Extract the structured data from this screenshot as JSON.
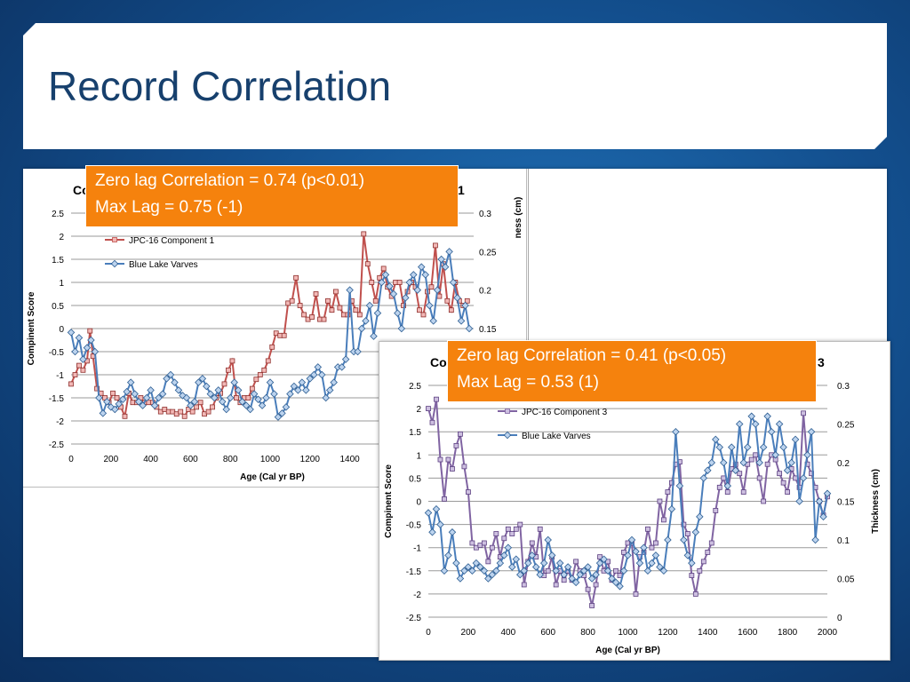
{
  "slide": {
    "title": "Record Correlation",
    "accent_color": "#f5820d",
    "background_color": "#134f8e"
  },
  "callouts": [
    {
      "line1": "Zero lag Correlation = 0.74 (p<0.01)",
      "line2": "Max Lag = 0.75 (-1)"
    },
    {
      "line1": "Zero lag Correlation = 0.41 (p<0.05)",
      "line2": "Max Lag = 0.53 (1)"
    }
  ],
  "chart_data": [
    {
      "type": "line",
      "title_visible_fragment_left": "Co",
      "title_visible_fragment_right": "1",
      "xlabel": "Age (Cal yr BP)",
      "ylabel": "Compinent Score",
      "ylabel_right_fragment": "ness (cm)",
      "xlim": [
        0,
        2000
      ],
      "ylim": [
        -2.5,
        2.5
      ],
      "ylim_right": [
        0,
        0.3
      ],
      "x_ticks": [
        "0",
        "200",
        "400",
        "600",
        "800",
        "1000",
        "1200",
        "1400"
      ],
      "y_ticks": [
        "2.5",
        "2",
        "1.5",
        "1",
        "0.5",
        "0",
        "-0.5",
        "-1",
        "-1.5",
        "-2",
        "-2.5"
      ],
      "y_right_ticks": [
        "0.3",
        "0.25",
        "0.2",
        "0.15"
      ],
      "grid": true,
      "legend_position": "top-left",
      "series": [
        {
          "name": "JPC-16 Component 1",
          "color": "#c0504d",
          "axis": "left",
          "x": [
            0,
            20,
            40,
            60,
            80,
            95,
            110,
            130,
            150,
            170,
            190,
            210,
            230,
            250,
            270,
            290,
            310,
            330,
            350,
            370,
            390,
            410,
            430,
            450,
            470,
            490,
            510,
            530,
            550,
            570,
            590,
            610,
            630,
            650,
            670,
            690,
            710,
            730,
            750,
            770,
            790,
            810,
            830,
            850,
            870,
            890,
            910,
            930,
            950,
            970,
            990,
            1010,
            1030,
            1050,
            1070,
            1090,
            1110,
            1130,
            1150,
            1170,
            1190,
            1210,
            1230,
            1250,
            1270,
            1290,
            1310,
            1330,
            1350,
            1370,
            1390,
            1410,
            1430,
            1450,
            1470,
            1490,
            1510,
            1530,
            1550,
            1570,
            1590,
            1610,
            1630,
            1650,
            1670,
            1690,
            1710,
            1730,
            1750,
            1770,
            1790,
            1810,
            1830,
            1850,
            1870,
            1890,
            1910,
            1930,
            1950,
            1970,
            1990
          ],
          "y": [
            -1.2,
            -1.0,
            -0.8,
            -0.9,
            -0.7,
            -0.05,
            -0.6,
            -1.3,
            -1.4,
            -1.5,
            -1.6,
            -1.4,
            -1.5,
            -1.7,
            -1.9,
            -1.4,
            -1.6,
            -1.6,
            -1.5,
            -1.6,
            -1.6,
            -1.6,
            -1.7,
            -1.8,
            -1.75,
            -1.8,
            -1.8,
            -1.85,
            -1.8,
            -1.9,
            -1.75,
            -1.8,
            -1.7,
            -1.6,
            -1.85,
            -1.8,
            -1.7,
            -1.5,
            -1.4,
            -1.2,
            -0.9,
            -0.7,
            -1.5,
            -1.6,
            -1.5,
            -1.5,
            -1.3,
            -1.1,
            -1.0,
            -0.9,
            -0.7,
            -0.4,
            -0.1,
            -0.15,
            -0.15,
            0.55,
            0.6,
            1.1,
            0.5,
            0.3,
            0.2,
            0.25,
            0.75,
            0.2,
            0.2,
            0.6,
            0.4,
            0.8,
            0.45,
            0.3,
            0.3,
            0.6,
            0.4,
            0.3,
            2.05,
            1.4,
            1.0,
            0.6,
            1.1,
            1.3,
            0.9,
            0.7,
            1.0,
            1.0,
            0.5,
            0.8,
            1.0,
            0.9,
            0.4,
            0.3,
            0.8,
            0.9,
            1.8,
            0.7,
            1.4,
            0.6,
            0.4,
            1.0,
            0.6,
            0.5,
            0.6
          ]
        },
        {
          "name": "Blue Lake Varves",
          "color": "#4a7ebb",
          "axis": "right",
          "x": [
            0,
            20,
            40,
            60,
            80,
            100,
            120,
            140,
            160,
            180,
            200,
            220,
            240,
            260,
            280,
            300,
            320,
            340,
            360,
            380,
            400,
            420,
            440,
            460,
            480,
            500,
            520,
            540,
            560,
            580,
            600,
            620,
            640,
            660,
            680,
            700,
            720,
            740,
            760,
            780,
            800,
            820,
            840,
            860,
            880,
            900,
            920,
            940,
            960,
            980,
            1000,
            1020,
            1040,
            1060,
            1080,
            1100,
            1120,
            1140,
            1160,
            1180,
            1200,
            1220,
            1240,
            1260,
            1280,
            1300,
            1320,
            1340,
            1360,
            1380,
            1400,
            1420,
            1440,
            1460,
            1480,
            1500,
            1520,
            1540,
            1560,
            1580,
            1600,
            1620,
            1640,
            1660,
            1680,
            1700,
            1720,
            1740,
            1760,
            1780,
            1800,
            1820,
            1840,
            1860,
            1880,
            1900,
            1920,
            1940,
            1960,
            1980,
            2000
          ],
          "y": [
            0.145,
            0.12,
            0.138,
            0.11,
            0.125,
            0.135,
            0.12,
            0.06,
            0.04,
            0.055,
            0.048,
            0.045,
            0.052,
            0.058,
            0.068,
            0.08,
            0.065,
            0.055,
            0.05,
            0.06,
            0.07,
            0.05,
            0.06,
            0.065,
            0.085,
            0.09,
            0.08,
            0.07,
            0.063,
            0.06,
            0.05,
            0.055,
            0.08,
            0.085,
            0.075,
            0.065,
            0.06,
            0.07,
            0.055,
            0.045,
            0.06,
            0.08,
            0.07,
            0.055,
            0.05,
            0.045,
            0.065,
            0.058,
            0.05,
            0.06,
            0.08,
            0.065,
            0.035,
            0.04,
            0.048,
            0.065,
            0.075,
            0.07,
            0.08,
            0.07,
            0.085,
            0.09,
            0.1,
            0.09,
            0.06,
            0.07,
            0.08,
            0.1,
            0.1,
            0.11,
            0.2,
            0.12,
            0.12,
            0.15,
            0.16,
            0.18,
            0.14,
            0.17,
            0.21,
            0.22,
            0.205,
            0.195,
            0.17,
            0.15,
            0.19,
            0.21,
            0.22,
            0.2,
            0.23,
            0.22,
            0.18,
            0.16,
            0.2,
            0.24,
            0.23,
            0.25,
            0.21,
            0.19,
            0.16,
            0.18,
            0.15
          ]
        }
      ]
    },
    {
      "type": "line",
      "title_visible_fragment_left": "Co",
      "title_visible_fragment_right": "3",
      "xlabel": "Age (Cal yr BP)",
      "ylabel": "Compinent Score",
      "ylabel_right": "Thickness (cm)",
      "xlim": [
        0,
        2000
      ],
      "ylim": [
        -2.5,
        2.5
      ],
      "ylim_right": [
        0,
        0.3
      ],
      "x_ticks": [
        "0",
        "200",
        "400",
        "600",
        "800",
        "1000",
        "1200",
        "1400",
        "1600",
        "1800",
        "2000"
      ],
      "y_ticks": [
        "2.5",
        "2",
        "1.5",
        "1",
        "0.5",
        "0",
        "-0.5",
        "-1",
        "-1.5",
        "-2",
        "-2.5"
      ],
      "y_right_ticks": [
        "0.3",
        "0.25",
        "0.2",
        "0.15",
        "0.1",
        "0.05",
        "0"
      ],
      "grid": true,
      "legend_position": "top-left",
      "series": [
        {
          "name": "JPC-16 Component 3",
          "color": "#8064a2",
          "axis": "left",
          "x": [
            0,
            20,
            40,
            60,
            80,
            100,
            120,
            140,
            160,
            180,
            200,
            220,
            240,
            260,
            280,
            300,
            320,
            340,
            360,
            380,
            400,
            420,
            440,
            460,
            480,
            500,
            520,
            540,
            560,
            580,
            600,
            620,
            640,
            660,
            680,
            700,
            720,
            740,
            760,
            780,
            800,
            820,
            840,
            860,
            880,
            900,
            920,
            940,
            960,
            980,
            1000,
            1020,
            1040,
            1060,
            1080,
            1100,
            1120,
            1140,
            1160,
            1180,
            1200,
            1220,
            1240,
            1260,
            1280,
            1300,
            1320,
            1340,
            1360,
            1380,
            1400,
            1420,
            1440,
            1460,
            1480,
            1500,
            1520,
            1540,
            1560,
            1580,
            1600,
            1620,
            1640,
            1660,
            1680,
            1700,
            1720,
            1740,
            1760,
            1780,
            1800,
            1820,
            1840,
            1860,
            1880,
            1900,
            1920,
            1940,
            1960,
            1980,
            2000
          ],
          "y": [
            2.0,
            1.7,
            2.2,
            0.9,
            0.05,
            0.9,
            0.7,
            1.2,
            1.45,
            0.75,
            0.2,
            -0.9,
            -1.0,
            -0.95,
            -0.9,
            -1.3,
            -1.0,
            -0.7,
            -1.2,
            -0.8,
            -0.6,
            -0.7,
            -0.6,
            -0.5,
            -1.8,
            -1.3,
            -0.9,
            -1.2,
            -0.6,
            -1.6,
            -1.5,
            -1.2,
            -1.8,
            -1.5,
            -1.7,
            -1.5,
            -1.7,
            -1.3,
            -1.5,
            -1.6,
            -1.9,
            -2.25,
            -1.8,
            -1.2,
            -1.5,
            -1.3,
            -1.7,
            -1.5,
            -1.6,
            -1.1,
            -0.9,
            -0.9,
            -2.0,
            -1.2,
            -1.1,
            -0.6,
            -1.0,
            -0.9,
            0.0,
            -0.4,
            0.2,
            0.4,
            0.8,
            0.85,
            -0.5,
            -0.7,
            -1.6,
            -2.0,
            -1.5,
            -1.3,
            -1.1,
            -0.9,
            -0.2,
            0.3,
            0.5,
            0.2,
            0.7,
            0.8,
            0.6,
            0.2,
            0.8,
            0.9,
            1.0,
            0.5,
            0.0,
            0.8,
            1.0,
            0.9,
            0.6,
            0.4,
            0.2,
            0.7,
            0.5,
            0.3,
            1.9,
            0.8,
            0.6,
            0.3,
            0.0,
            -0.3,
            0.1
          ]
        },
        {
          "name": "Blue Lake Varves",
          "color": "#4a7ebb",
          "axis": "right",
          "x": [
            0,
            20,
            40,
            60,
            80,
            100,
            120,
            140,
            160,
            180,
            200,
            220,
            240,
            260,
            280,
            300,
            320,
            340,
            360,
            380,
            400,
            420,
            440,
            460,
            480,
            500,
            520,
            540,
            560,
            580,
            600,
            620,
            640,
            660,
            680,
            700,
            720,
            740,
            760,
            780,
            800,
            820,
            840,
            860,
            880,
            900,
            920,
            940,
            960,
            980,
            1000,
            1020,
            1040,
            1060,
            1080,
            1100,
            1120,
            1140,
            1160,
            1180,
            1200,
            1220,
            1240,
            1260,
            1280,
            1300,
            1320,
            1340,
            1360,
            1380,
            1400,
            1420,
            1440,
            1460,
            1480,
            1500,
            1520,
            1540,
            1560,
            1580,
            1600,
            1620,
            1640,
            1660,
            1680,
            1700,
            1720,
            1740,
            1760,
            1780,
            1800,
            1820,
            1840,
            1860,
            1880,
            1900,
            1920,
            1940,
            1960,
            1980,
            2000
          ],
          "y": [
            0.135,
            0.11,
            0.14,
            0.12,
            0.06,
            0.08,
            0.11,
            0.07,
            0.05,
            0.06,
            0.065,
            0.06,
            0.07,
            0.065,
            0.06,
            0.05,
            0.055,
            0.06,
            0.07,
            0.08,
            0.09,
            0.065,
            0.075,
            0.055,
            0.06,
            0.07,
            0.08,
            0.065,
            0.055,
            0.07,
            0.1,
            0.08,
            0.06,
            0.07,
            0.055,
            0.065,
            0.05,
            0.045,
            0.055,
            0.06,
            0.065,
            0.05,
            0.055,
            0.07,
            0.075,
            0.06,
            0.05,
            0.045,
            0.04,
            0.06,
            0.08,
            0.1,
            0.085,
            0.07,
            0.09,
            0.06,
            0.07,
            0.08,
            0.065,
            0.06,
            0.1,
            0.14,
            0.24,
            0.17,
            0.1,
            0.08,
            0.07,
            0.11,
            0.13,
            0.18,
            0.19,
            0.2,
            0.23,
            0.22,
            0.2,
            0.17,
            0.22,
            0.19,
            0.25,
            0.2,
            0.22,
            0.26,
            0.25,
            0.2,
            0.22,
            0.26,
            0.24,
            0.21,
            0.25,
            0.22,
            0.19,
            0.2,
            0.23,
            0.15,
            0.18,
            0.21,
            0.24,
            0.1,
            0.15,
            0.13,
            0.16
          ]
        }
      ]
    }
  ]
}
